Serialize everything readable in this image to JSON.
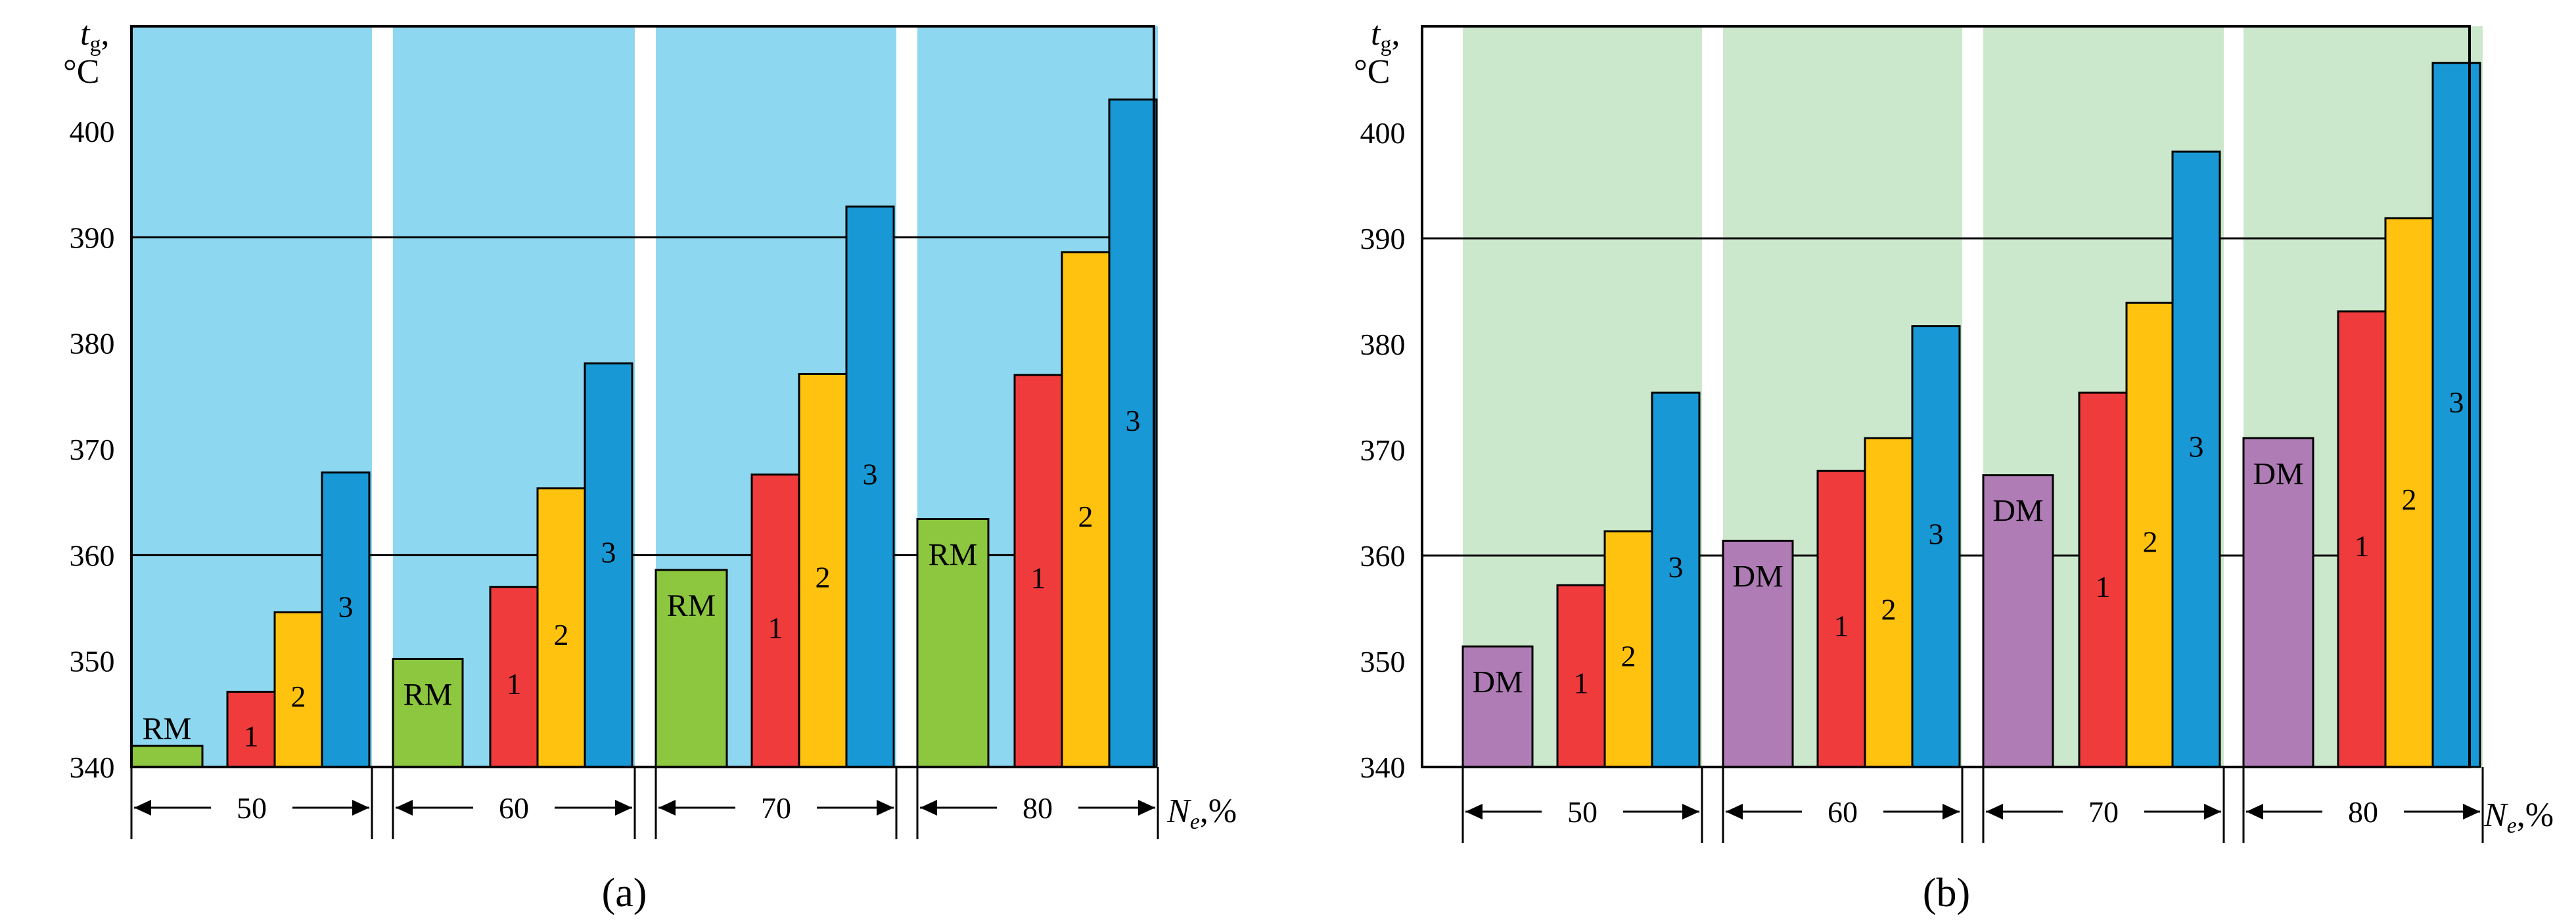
{
  "colors": {
    "bg_a": "#8ed7f0",
    "bg_b": "#cce8cc",
    "base_a": "#8dc63f",
    "base_b": "#b07cb6",
    "mode1": "#ef3b3b",
    "mode2": "#ffc20e",
    "mode3": "#1899d6"
  },
  "chart_data": [
    {
      "type": "bar",
      "panel_label": "(a)",
      "ylabel_main": "t",
      "ylabel_sub": "g",
      "ylabel_rest": ",",
      "ylabel_unit": "°C",
      "xlabel_main": "N",
      "xlabel_sub": "e",
      "xlabel_rest": ",%",
      "ylim": [
        340,
        410
      ],
      "yticks": [
        340,
        350,
        360,
        370,
        380,
        390,
        400
      ],
      "ytick_labels": [
        "340",
        "350",
        "360",
        "370",
        "380",
        "390",
        "400"
      ],
      "gridlines": [
        360,
        390
      ],
      "categories": [
        "50",
        "60",
        "70",
        "80"
      ],
      "series": [
        {
          "name": "RM",
          "label": "RM",
          "values": [
            342,
            350.2,
            358.6,
            363.4
          ]
        },
        {
          "name": "1",
          "label": "1",
          "values": [
            347.1,
            357,
            367.6,
            377
          ]
        },
        {
          "name": "2",
          "label": "2",
          "values": [
            354.6,
            366.3,
            377.1,
            388.6
          ]
        },
        {
          "name": "3",
          "label": "3",
          "values": [
            367.8,
            378.1,
            392.9,
            403
          ]
        }
      ]
    },
    {
      "type": "bar",
      "panel_label": "(b)",
      "ylabel_main": "t",
      "ylabel_sub": "g",
      "ylabel_rest": ",",
      "ylabel_unit": "°C",
      "xlabel_main": "N",
      "xlabel_sub": "e",
      "xlabel_rest": ",%",
      "ylim": [
        340,
        410
      ],
      "yticks": [
        340,
        350,
        360,
        370,
        380,
        390,
        400
      ],
      "ytick_labels": [
        "340",
        "350",
        "360",
        "370",
        "380",
        "390",
        "400"
      ],
      "gridlines": [
        360,
        390
      ],
      "categories": [
        "50",
        "60",
        "70",
        "80"
      ],
      "series": [
        {
          "name": "DM",
          "label": "DM",
          "values": [
            351.4,
            361.4,
            367.6,
            371.1
          ]
        },
        {
          "name": "1",
          "label": "1",
          "values": [
            357.2,
            368,
            375.4,
            383.1
          ]
        },
        {
          "name": "2",
          "label": "2",
          "values": [
            362.3,
            371.1,
            383.9,
            391.9
          ]
        },
        {
          "name": "3",
          "label": "3",
          "values": [
            375.4,
            381.7,
            398.2,
            406.6
          ]
        }
      ]
    }
  ]
}
